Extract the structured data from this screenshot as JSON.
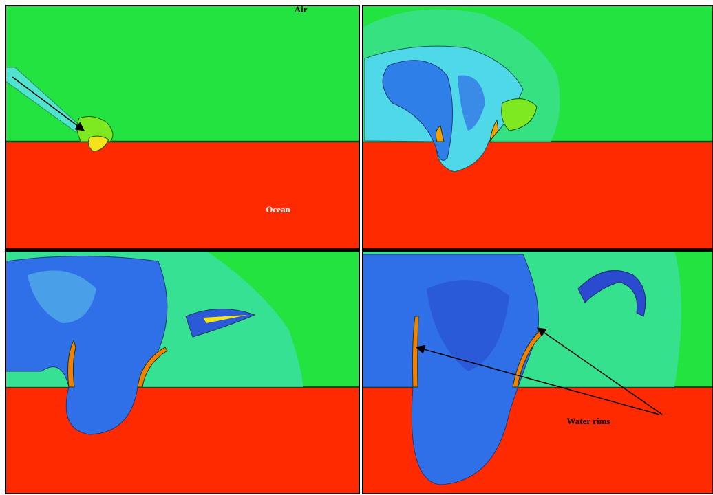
{
  "labels": {
    "air": "Air",
    "ocean": "Ocean",
    "water_rims": "Water rims"
  }
}
